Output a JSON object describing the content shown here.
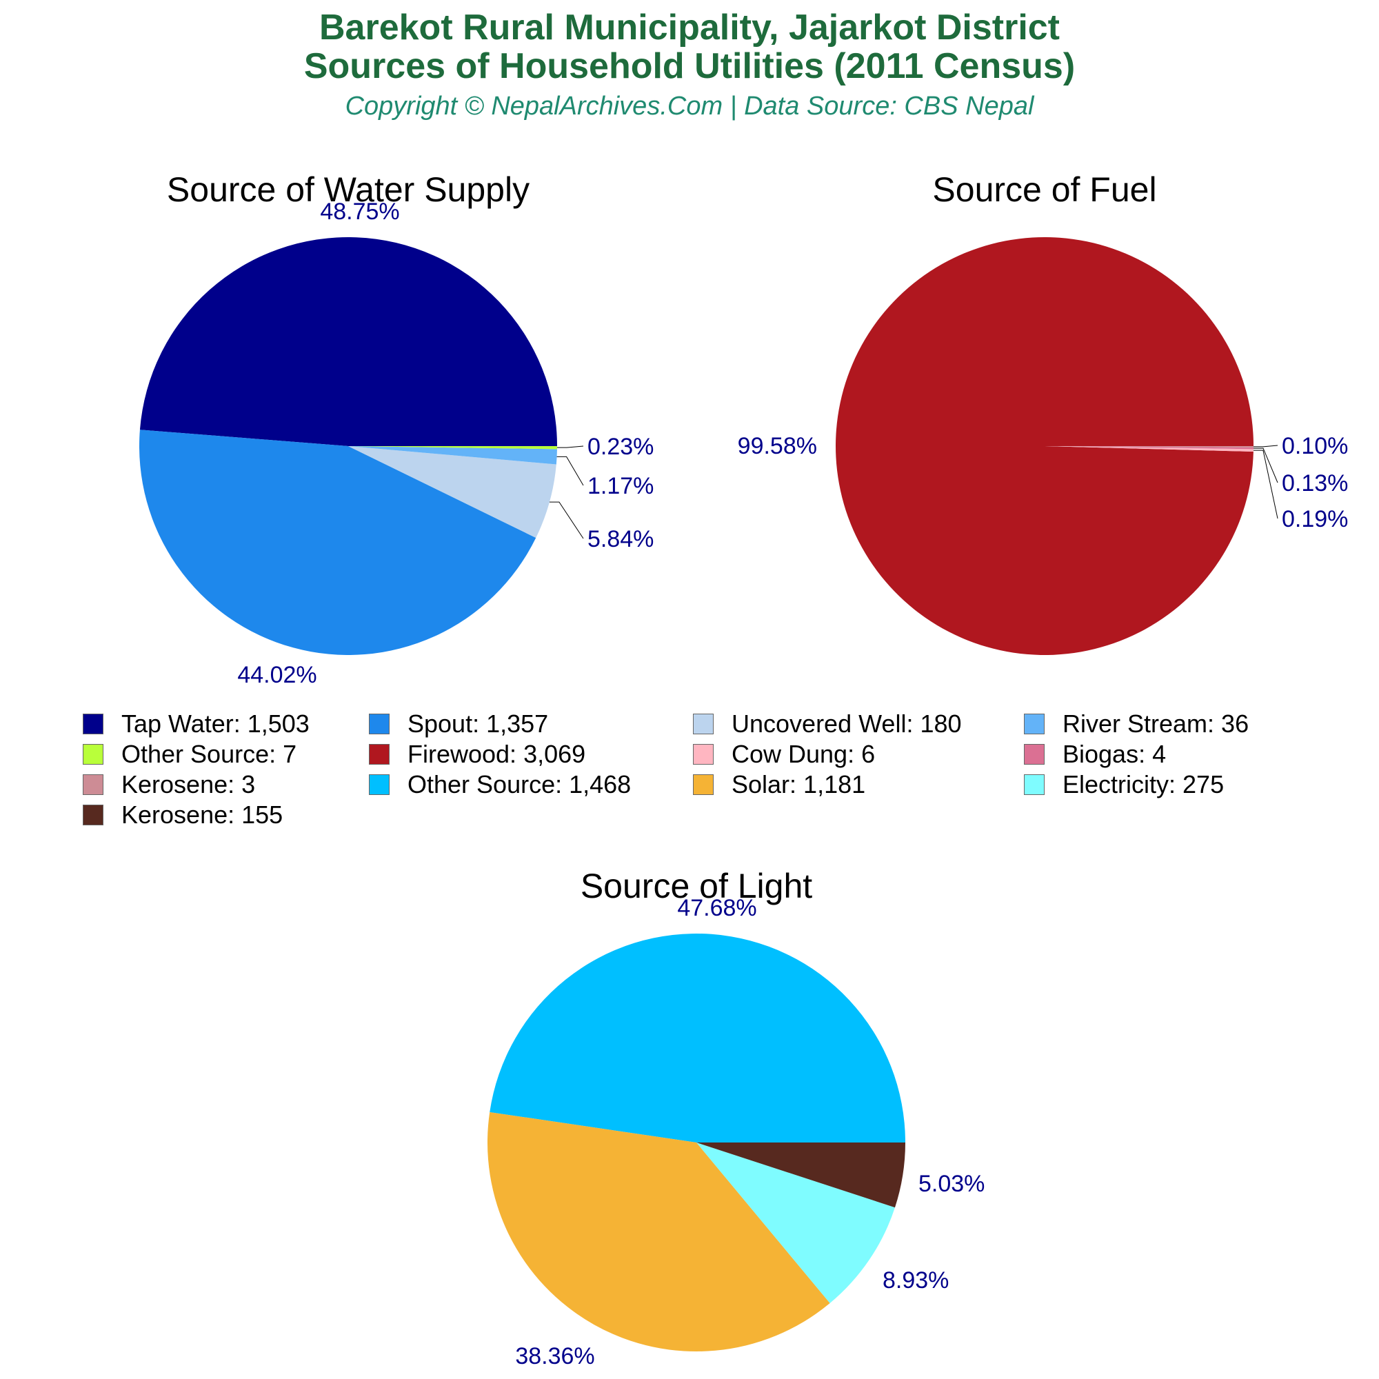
{
  "header": {
    "title_line1": "Barekot Rural Municipality, Jajarkot District",
    "title_line2": "Sources of Household Utilities (2011 Census)",
    "subtitle": "Copyright © NepalArchives.Com | Data Source: CBS Nepal"
  },
  "chart_data": [
    {
      "type": "pie",
      "id": "water",
      "title": "Source of Water Supply",
      "slices": [
        {
          "label": "Tap Water",
          "value": 1503,
          "pct": "48.75%",
          "color": "#00008b"
        },
        {
          "label": "Spout",
          "value": 1357,
          "pct": "44.02%",
          "color": "#1e88ec"
        },
        {
          "label": "Uncovered Well",
          "value": 180,
          "pct": "5.84%",
          "color": "#bcd4ee"
        },
        {
          "label": "River Stream",
          "value": 36,
          "pct": "1.17%",
          "color": "#63b3f8"
        },
        {
          "label": "Other Source",
          "value": 7,
          "pct": "0.23%",
          "color": "#b9ff3a"
        }
      ]
    },
    {
      "type": "pie",
      "id": "fuel",
      "title": "Source of Fuel",
      "slices": [
        {
          "label": "Firewood",
          "value": 3069,
          "pct": "99.58%",
          "color": "#b0171f"
        },
        {
          "label": "Cow Dung",
          "value": 6,
          "pct": "0.19%",
          "color": "#ffb6c1"
        },
        {
          "label": "Biogas",
          "value": 4,
          "pct": "0.13%",
          "color": "#db7093"
        },
        {
          "label": "Kerosene",
          "value": 3,
          "pct": "0.10%",
          "color": "#cd8c95"
        }
      ]
    },
    {
      "type": "pie",
      "id": "light",
      "title": "Source of Light",
      "slices": [
        {
          "label": "Other Source",
          "value": 1468,
          "pct": "47.68%",
          "color": "#00bfff"
        },
        {
          "label": "Solar",
          "value": 1181,
          "pct": "38.36%",
          "color": "#f5b335"
        },
        {
          "label": "Electricity",
          "value": 275,
          "pct": "8.93%",
          "color": "#7ffcff"
        },
        {
          "label": "Kerosene",
          "value": 155,
          "pct": "5.03%",
          "color": "#57291f"
        }
      ]
    }
  ],
  "legend": [
    {
      "text": "Tap Water: 1,503",
      "color": "#00008b"
    },
    {
      "text": "Spout: 1,357",
      "color": "#1e88ec"
    },
    {
      "text": "Uncovered Well: 180",
      "color": "#bcd4ee"
    },
    {
      "text": "River Stream: 36",
      "color": "#63b3f8"
    },
    {
      "text": "Other Source: 7",
      "color": "#b9ff3a"
    },
    {
      "text": "Firewood: 3,069",
      "color": "#b0171f"
    },
    {
      "text": "Cow Dung: 6",
      "color": "#ffb6c1"
    },
    {
      "text": "Biogas: 4",
      "color": "#db7093"
    },
    {
      "text": "Kerosene: 3",
      "color": "#cd8c95"
    },
    {
      "text": "Other Source: 1,468",
      "color": "#00bfff"
    },
    {
      "text": "Solar: 1,181",
      "color": "#f5b335"
    },
    {
      "text": "Electricity: 275",
      "color": "#7ffcff"
    },
    {
      "text": "Kerosene: 155",
      "color": "#57291f"
    }
  ]
}
